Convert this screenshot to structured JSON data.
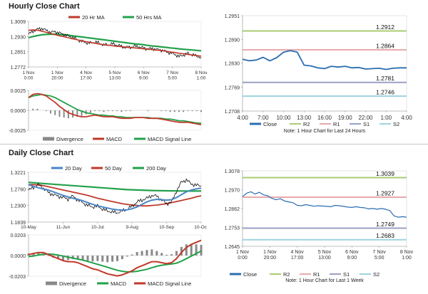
{
  "sections": {
    "hourly": {
      "title": "Hourly Close Chart"
    },
    "daily": {
      "title": "Daily Close Chart"
    }
  },
  "colors": {
    "close_line": "#2a6db0",
    "r2": "#a9cc72",
    "r1": "#e7a9ad",
    "s1": "#9aa0c4",
    "s2": "#9fd4e0",
    "ma_short": "#c0392b",
    "ma_long": "#22a14a",
    "price": "#111111",
    "ma_blue": "#4a86c5",
    "divergence": "#888888"
  },
  "chart_data": [
    {
      "id": "hourly_price_ma",
      "type": "line",
      "legend": [
        "20 Hr MA",
        "50 Hrs MA"
      ],
      "yticks": [
        "1.3009",
        "1.2930",
        "1.2851",
        "1.2772"
      ],
      "ylim": [
        1.2772,
        1.3009
      ],
      "xticks": [
        "1 Nov\n0:00",
        "1 Nov\n20:00",
        "4 Nov\n17:00",
        "5 Nov\n13:00",
        "6 Nov\n9:00",
        "7 Nov\n5:00",
        "8 Nov\n1:00"
      ],
      "series": [
        {
          "name": "Price",
          "values": [
            1.2942,
            1.2958,
            1.2968,
            1.2972,
            1.2962,
            1.2952,
            1.2955,
            1.2948,
            1.2941,
            1.2932,
            1.2926,
            1.2914,
            1.2905,
            1.2898,
            1.2896,
            1.2902,
            1.2896,
            1.2885,
            1.2888,
            1.2892,
            1.2886,
            1.2878,
            1.2872,
            1.2875,
            1.288,
            1.2876,
            1.287,
            1.2866,
            1.2868,
            1.2862,
            1.286,
            1.2852,
            1.2845,
            1.2838,
            1.2826,
            1.2834,
            1.2842,
            1.2836,
            1.2828,
            1.2822
          ]
        },
        {
          "name": "20 Hr MA",
          "values": [
            1.2962,
            1.2965,
            1.2963,
            1.2958,
            1.2952,
            1.2946,
            1.294,
            1.2934,
            1.2929,
            1.2924,
            1.2918,
            1.2913,
            1.2908,
            1.2903,
            1.2899,
            1.2895,
            1.2891,
            1.2888,
            1.2885,
            1.2882,
            1.2879,
            1.2877,
            1.2875,
            1.2873,
            1.2871,
            1.2869,
            1.2866,
            1.2864,
            1.2862,
            1.2859,
            1.2857,
            1.2854,
            1.285,
            1.2847,
            1.2843,
            1.284,
            1.2837,
            1.2834,
            1.2831,
            1.2828
          ]
        },
        {
          "name": "50 Hrs MA",
          "values": [
            1.2924,
            1.293,
            1.2935,
            1.2939,
            1.2941,
            1.2942,
            1.2942,
            1.2941,
            1.2939,
            1.2937,
            1.2934,
            1.2931,
            1.2928,
            1.2925,
            1.2922,
            1.2919,
            1.2916,
            1.2913,
            1.291,
            1.2907,
            1.2904,
            1.2901,
            1.2898,
            1.2895,
            1.2892,
            1.289,
            1.2887,
            1.2884,
            1.2881,
            1.2879,
            1.2876,
            1.2874,
            1.2871,
            1.2869,
            1.2866,
            1.2864,
            1.2862,
            1.286,
            1.2858,
            1.2856
          ]
        }
      ]
    },
    {
      "id": "hourly_macd",
      "type": "line",
      "legend": [
        "Divergence",
        "MACD",
        "MACD Signal Line"
      ],
      "yticks": [
        "0.0025",
        "0.0000",
        "-0.0025"
      ],
      "ylim": [
        -0.0025,
        0.0025
      ],
      "series": [
        {
          "name": "MACD",
          "values": [
            0.0016,
            0.002,
            0.0021,
            0.002,
            0.0018,
            0.0014,
            0.001,
            0.0005,
            0.0001,
            -0.0003,
            -0.0005,
            -0.0007,
            -0.0008,
            -0.0008,
            -0.0007,
            -0.0006,
            -0.0007,
            -0.0008,
            -0.0008,
            -0.0008,
            -0.0009,
            -0.001,
            -0.001,
            -0.001,
            -0.0009,
            -0.0009,
            -0.0009,
            -0.001,
            -0.001,
            -0.001,
            -0.0011,
            -0.0012,
            -0.0013,
            -0.0014,
            -0.0015,
            -0.0015,
            -0.0015,
            -0.0016,
            -0.0017,
            -0.0018
          ]
        },
        {
          "name": "MACD Signal Line",
          "values": [
            0.0016,
            0.0018,
            0.0019,
            0.002,
            0.0019,
            0.0018,
            0.0016,
            0.0013,
            0.001,
            0.0007,
            0.0004,
            0.0001,
            -0.0001,
            -0.0003,
            -0.0004,
            -0.0005,
            -0.0006,
            -0.0006,
            -0.0007,
            -0.0007,
            -0.0008,
            -0.0008,
            -0.0009,
            -0.0009,
            -0.0009,
            -0.0009,
            -0.0009,
            -0.0009,
            -0.001,
            -0.001,
            -0.001,
            -0.0011,
            -0.0011,
            -0.0012,
            -0.0013,
            -0.0013,
            -0.0014,
            -0.0015,
            -0.0016,
            -0.0016
          ]
        }
      ]
    },
    {
      "id": "hourly_24h",
      "type": "line",
      "yticks": [
        "1.2951",
        "1.2890",
        "1.2830",
        "1.2769",
        "1.2708"
      ],
      "ylim": [
        1.2708,
        1.2951
      ],
      "xticks": [
        "4:00",
        "7:00",
        "10:00",
        "13:00",
        "16:00",
        "19:00",
        "22:00",
        "1:00",
        "4:00"
      ],
      "levels": [
        {
          "name": "R2",
          "value": 1.2912,
          "label": "1.2912"
        },
        {
          "name": "R1",
          "value": 1.2864,
          "label": "1.2864"
        },
        {
          "name": "S1",
          "value": 1.2781,
          "label": "1.2781"
        },
        {
          "name": "S2",
          "value": 1.2746,
          "label": "1.2746"
        }
      ],
      "series": [
        {
          "name": "Close",
          "values": [
            1.284,
            1.2836,
            1.2838,
            1.2845,
            1.2836,
            1.2844,
            1.2858,
            1.2862,
            1.2858,
            1.2825,
            1.2823,
            1.2818,
            1.2816,
            1.2822,
            1.282,
            1.2822,
            1.2818,
            1.2819,
            1.2815,
            1.2816,
            1.2817,
            1.2814,
            1.2817,
            1.2818,
            1.2818
          ]
        }
      ],
      "legend": [
        "Close",
        "R2",
        "R1",
        "S1",
        "S2"
      ],
      "note": "Note: 1 Hour Chart for Last 24 Hours"
    },
    {
      "id": "daily_price_ma",
      "type": "line",
      "legend": [
        "20 Day",
        "50 Day",
        "200 Day"
      ],
      "yticks": [
        "1.3221",
        "1.2760",
        "1.2300",
        "1.1839"
      ],
      "ylim": [
        1.1839,
        1.3221
      ],
      "xticks": [
        "10-May",
        "11-Jun",
        "10-Jul",
        "9-Aug",
        "10-Sep",
        "10-Oct"
      ],
      "series": [
        {
          "name": "Price",
          "values": [
            1.272,
            1.28,
            1.288,
            1.278,
            1.266,
            1.26,
            1.256,
            1.252,
            1.248,
            1.256,
            1.245,
            1.238,
            1.23,
            1.226,
            1.228,
            1.22,
            1.215,
            1.212,
            1.21,
            1.215,
            1.22,
            1.228,
            1.24,
            1.245,
            1.25,
            1.258,
            1.256,
            1.245,
            1.235,
            1.24,
            1.27,
            1.295,
            1.301,
            1.29,
            1.286,
            1.285
          ]
        },
        {
          "name": "20 Day",
          "values": [
            1.288,
            1.283,
            1.279,
            1.276,
            1.273,
            1.268,
            1.263,
            1.258,
            1.254,
            1.25,
            1.247,
            1.243,
            1.238,
            1.233,
            1.229,
            1.226,
            1.223,
            1.22,
            1.218,
            1.217,
            1.218,
            1.221,
            1.226,
            1.233,
            1.24,
            1.245,
            1.247,
            1.246,
            1.245,
            1.246,
            1.252,
            1.26,
            1.268,
            1.273,
            1.276,
            1.278
          ]
        },
        {
          "name": "50 Day",
          "values": [
            1.288,
            1.288,
            1.287,
            1.285,
            1.282,
            1.279,
            1.276,
            1.273,
            1.27,
            1.267,
            1.264,
            1.261,
            1.258,
            1.254,
            1.25,
            1.247,
            1.244,
            1.241,
            1.238,
            1.235,
            1.233,
            1.231,
            1.23,
            1.229,
            1.229,
            1.23,
            1.231,
            1.233,
            1.235,
            1.238,
            1.241,
            1.244,
            1.247,
            1.25,
            1.254,
            1.257
          ]
        },
        {
          "name": "200 Day",
          "values": [
            1.294,
            1.293,
            1.292,
            1.291,
            1.29,
            1.289,
            1.288,
            1.287,
            1.286,
            1.285,
            1.284,
            1.283,
            1.282,
            1.281,
            1.28,
            1.279,
            1.278,
            1.277,
            1.276,
            1.275,
            1.274,
            1.2735,
            1.273,
            1.2725,
            1.272,
            1.2715,
            1.2712,
            1.271,
            1.2708,
            1.2706,
            1.2704,
            1.2702,
            1.27,
            1.27,
            1.27,
            1.27
          ]
        }
      ]
    },
    {
      "id": "daily_macd",
      "type": "line",
      "legend": [
        "Divergence",
        "MACD",
        "MACD Signal Line"
      ],
      "yticks": [
        "0.0203",
        "0.0000",
        "-0.0203"
      ],
      "ylim": [
        -0.0203,
        0.0203
      ],
      "series": [
        {
          "name": "MACD",
          "values": [
            0.001,
            0.002,
            0.003,
            0.003,
            0.001,
            -0.001,
            -0.003,
            -0.005,
            -0.006,
            -0.006,
            -0.007,
            -0.009,
            -0.011,
            -0.013,
            -0.014,
            -0.016,
            -0.018,
            -0.019,
            -0.02,
            -0.019,
            -0.017,
            -0.015,
            -0.012,
            -0.01,
            -0.008,
            -0.006,
            -0.006,
            -0.007,
            -0.008,
            -0.007,
            -0.003,
            0.003,
            0.008,
            0.011,
            0.013,
            0.015
          ]
        },
        {
          "name": "MACD Signal Line",
          "values": [
            -0.001,
            -0.0005,
            0.0005,
            0.0012,
            0.0015,
            0.0012,
            0.0005,
            -0.0005,
            -0.0015,
            -0.0025,
            -0.0035,
            -0.0045,
            -0.0058,
            -0.0072,
            -0.0086,
            -0.01,
            -0.0115,
            -0.013,
            -0.0145,
            -0.0155,
            -0.016,
            -0.016,
            -0.0155,
            -0.0145,
            -0.0135,
            -0.012,
            -0.0105,
            -0.0095,
            -0.0088,
            -0.0083,
            -0.0075,
            -0.0055,
            -0.003,
            -0.0005,
            0.002,
            0.0045
          ]
        }
      ]
    },
    {
      "id": "daily_week",
      "type": "line",
      "yticks": [
        "1.3078",
        "1.2970",
        "1.2862",
        "1.2753",
        "1.2645"
      ],
      "ylim": [
        1.2645,
        1.3078
      ],
      "xticks": [
        "1 Nov\n0:00",
        "1 Nov\n20:00",
        "4 Nov\n17:00",
        "5 Nov\n13:00",
        "6 Nov\n9:00",
        "7 Nov\n5:00",
        "8 Nov\n1:00"
      ],
      "levels": [
        {
          "name": "R2",
          "value": 1.3039,
          "label": "1.3039"
        },
        {
          "name": "R1",
          "value": 1.2927,
          "label": "1.2927"
        },
        {
          "name": "S1",
          "value": 1.2749,
          "label": "1.2749"
        },
        {
          "name": "S2",
          "value": 1.2683,
          "label": "1.2683"
        }
      ],
      "series": [
        {
          "name": "Close",
          "values": [
            1.293,
            1.295,
            1.2958,
            1.2945,
            1.2955,
            1.294,
            1.2935,
            1.292,
            1.2912,
            1.2918,
            1.2905,
            1.29,
            1.2895,
            1.288,
            1.2878,
            1.2884,
            1.288,
            1.2875,
            1.2878,
            1.2876,
            1.2874,
            1.2872,
            1.288,
            1.2878,
            1.2874,
            1.287,
            1.2868,
            1.2872,
            1.2868,
            1.2866,
            1.286,
            1.2862,
            1.2858,
            1.2862,
            1.2858,
            1.285,
            1.282,
            1.2812,
            1.2815,
            1.2812
          ]
        }
      ],
      "legend": [
        "Close",
        "R2",
        "R1",
        "S1",
        "S2"
      ],
      "note": "Note: 1 Hour Chart for Last 1 Week"
    }
  ]
}
